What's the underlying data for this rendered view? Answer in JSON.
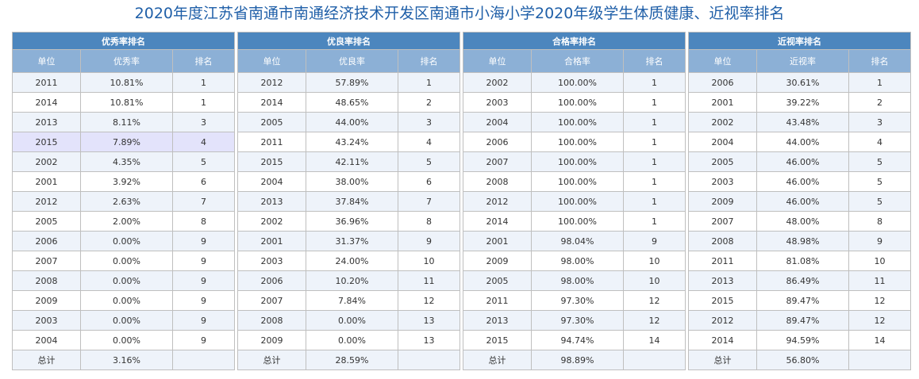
{
  "title": "2020年度江苏省南通市南通经济技术开发区南通市小海小学2020年级学生体质健康、近视率排名",
  "colors": {
    "title": "#1f5fa8",
    "group_header": "#4c86be",
    "column_header": "#8cb0d6",
    "row_alt": "#eef3fa",
    "row_highlight": "#e3e3fb"
  },
  "panels": [
    {
      "group": "优秀率排名",
      "headers": [
        "单位",
        "优秀率",
        "排名"
      ],
      "rows": [
        [
          "2011",
          "10.81%",
          "1"
        ],
        [
          "2014",
          "10.81%",
          "1"
        ],
        [
          "2013",
          "8.11%",
          "3"
        ],
        [
          "2015",
          "7.89%",
          "4"
        ],
        [
          "2002",
          "4.35%",
          "5"
        ],
        [
          "2001",
          "3.92%",
          "6"
        ],
        [
          "2012",
          "2.63%",
          "7"
        ],
        [
          "2005",
          "2.00%",
          "8"
        ],
        [
          "2006",
          "0.00%",
          "9"
        ],
        [
          "2007",
          "0.00%",
          "9"
        ],
        [
          "2008",
          "0.00%",
          "9"
        ],
        [
          "2009",
          "0.00%",
          "9"
        ],
        [
          "2003",
          "0.00%",
          "9"
        ],
        [
          "2004",
          "0.00%",
          "9"
        ]
      ],
      "total": [
        "总计",
        "3.16%",
        ""
      ]
    },
    {
      "group": "优良率排名",
      "headers": [
        "单位",
        "优良率",
        "排名"
      ],
      "rows": [
        [
          "2012",
          "57.89%",
          "1"
        ],
        [
          "2014",
          "48.65%",
          "2"
        ],
        [
          "2005",
          "44.00%",
          "3"
        ],
        [
          "2011",
          "43.24%",
          "4"
        ],
        [
          "2015",
          "42.11%",
          "5"
        ],
        [
          "2004",
          "38.00%",
          "6"
        ],
        [
          "2013",
          "37.84%",
          "7"
        ],
        [
          "2002",
          "36.96%",
          "8"
        ],
        [
          "2001",
          "31.37%",
          "9"
        ],
        [
          "2003",
          "24.00%",
          "10"
        ],
        [
          "2006",
          "10.20%",
          "11"
        ],
        [
          "2007",
          "7.84%",
          "12"
        ],
        [
          "2008",
          "0.00%",
          "13"
        ],
        [
          "2009",
          "0.00%",
          "13"
        ]
      ],
      "total": [
        "总计",
        "28.59%",
        ""
      ]
    },
    {
      "group": "合格率排名",
      "headers": [
        "单位",
        "合格率",
        "排名"
      ],
      "rows": [
        [
          "2002",
          "100.00%",
          "1"
        ],
        [
          "2003",
          "100.00%",
          "1"
        ],
        [
          "2004",
          "100.00%",
          "1"
        ],
        [
          "2006",
          "100.00%",
          "1"
        ],
        [
          "2007",
          "100.00%",
          "1"
        ],
        [
          "2008",
          "100.00%",
          "1"
        ],
        [
          "2012",
          "100.00%",
          "1"
        ],
        [
          "2014",
          "100.00%",
          "1"
        ],
        [
          "2001",
          "98.04%",
          "9"
        ],
        [
          "2009",
          "98.00%",
          "10"
        ],
        [
          "2005",
          "98.00%",
          "10"
        ],
        [
          "2011",
          "97.30%",
          "12"
        ],
        [
          "2013",
          "97.30%",
          "12"
        ],
        [
          "2015",
          "94.74%",
          "14"
        ]
      ],
      "total": [
        "总计",
        "98.89%",
        ""
      ]
    },
    {
      "group": "近视率排名",
      "headers": [
        "单位",
        "近视率",
        "排名"
      ],
      "rows": [
        [
          "2006",
          "30.61%",
          "1"
        ],
        [
          "2001",
          "39.22%",
          "2"
        ],
        [
          "2002",
          "43.48%",
          "3"
        ],
        [
          "2004",
          "44.00%",
          "4"
        ],
        [
          "2005",
          "46.00%",
          "5"
        ],
        [
          "2003",
          "46.00%",
          "5"
        ],
        [
          "2009",
          "46.00%",
          "5"
        ],
        [
          "2007",
          "48.00%",
          "8"
        ],
        [
          "2008",
          "48.98%",
          "9"
        ],
        [
          "2011",
          "81.08%",
          "10"
        ],
        [
          "2013",
          "86.49%",
          "11"
        ],
        [
          "2015",
          "89.47%",
          "12"
        ],
        [
          "2012",
          "89.47%",
          "12"
        ],
        [
          "2014",
          "94.59%",
          "14"
        ]
      ],
      "total": [
        "总计",
        "56.80%",
        ""
      ]
    }
  ]
}
